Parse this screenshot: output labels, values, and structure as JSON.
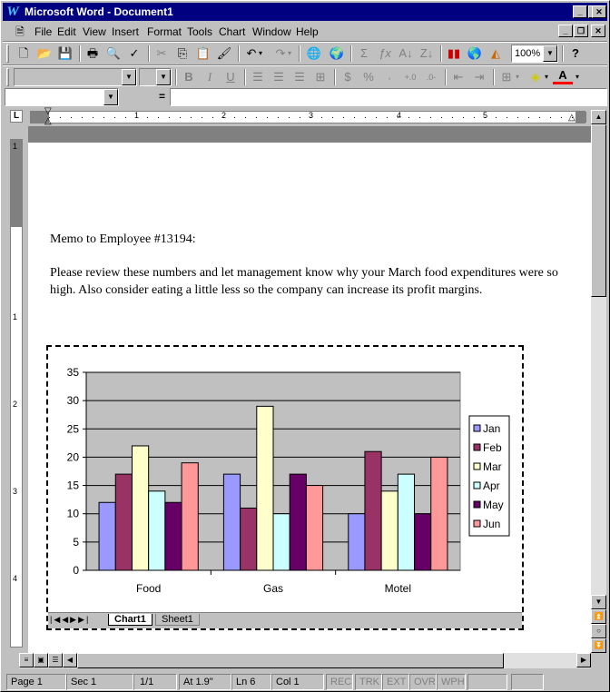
{
  "titlebar": {
    "title": "Microsoft Word - Document1",
    "logo": "W"
  },
  "menu": [
    "File",
    "Edit",
    "View",
    "Insert",
    "Format",
    "Tools",
    "Chart",
    "Window",
    "Help"
  ],
  "toolbar": {
    "zoom": "100%"
  },
  "formula_bar": {
    "equals": "="
  },
  "ruler": {
    "marks": [
      "1",
      "2",
      "3",
      "4",
      "5"
    ],
    "vmarks": [
      "1",
      "1",
      "2",
      "3",
      "4"
    ]
  },
  "memo": {
    "greeting": "Memo to Employee #13194:",
    "body": "Please review these numbers and let management know why your March food expenditures were so high. Also consider eating a little less so the company can increase its profit margins."
  },
  "sheet_tabs": [
    "Chart1",
    "Sheet1"
  ],
  "chart_data": {
    "type": "bar",
    "categories": [
      "Food",
      "Gas",
      "Motel"
    ],
    "ylim": [
      0,
      35
    ],
    "yticks": [
      0,
      5,
      10,
      15,
      20,
      25,
      30,
      35
    ],
    "legend_position": "right",
    "grid": true,
    "series": [
      {
        "name": "Jan",
        "color": "#9999ff",
        "values": [
          12,
          17,
          10
        ]
      },
      {
        "name": "Feb",
        "color": "#993366",
        "values": [
          17,
          11,
          21
        ]
      },
      {
        "name": "Mar",
        "color": "#ffffcc",
        "values": [
          22,
          29,
          14
        ]
      },
      {
        "name": "Apr",
        "color": "#ccffff",
        "values": [
          14,
          10,
          17
        ]
      },
      {
        "name": "May",
        "color": "#660066",
        "values": [
          12,
          17,
          10
        ]
      },
      {
        "name": "Jun",
        "color": "#ff9999",
        "values": [
          19,
          15,
          20
        ]
      }
    ]
  },
  "status": {
    "page": "Page 1",
    "sec": "Sec 1",
    "pages": "1/1",
    "at": "At 1.9\"",
    "ln": "Ln 6",
    "col": "Col 1",
    "modes": [
      "REC",
      "TRK",
      "EXT",
      "OVR",
      "WPH"
    ]
  }
}
